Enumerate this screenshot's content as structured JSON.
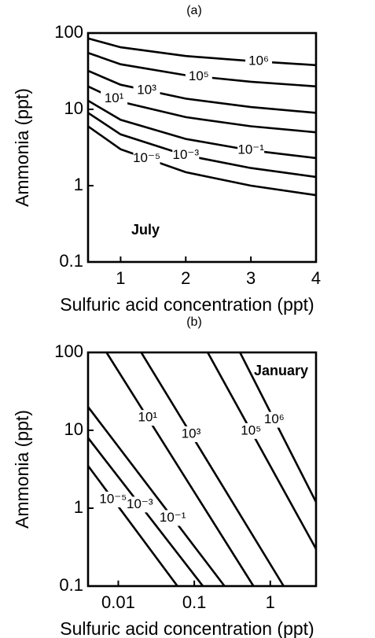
{
  "chart_data": [
    {
      "type": "contour",
      "title": "(a)",
      "annotation": "July",
      "xlabel": "Sulfuric acid concentration (ppt)",
      "ylabel": "Ammonia (ppt)",
      "xscale": "linear",
      "yscale": "log",
      "xlim": [
        0.5,
        4
      ],
      "ylim": [
        0.1,
        100
      ],
      "xticks": [
        1,
        2,
        3,
        4
      ],
      "yticks": [
        0.1,
        1,
        10,
        100
      ],
      "color": "#000000",
      "contours": [
        {
          "label": "10⁻⁵",
          "x": [
            0.5,
            1,
            2,
            3,
            4
          ],
          "y": [
            6,
            3,
            1.5,
            1.0,
            0.75
          ]
        },
        {
          "label": "10⁻³",
          "x": [
            0.5,
            1,
            2,
            3,
            4
          ],
          "y": [
            9,
            4.7,
            2.5,
            1.7,
            1.3
          ]
        },
        {
          "label": "10⁻¹",
          "x": [
            0.5,
            1,
            2,
            3,
            4
          ],
          "y": [
            13,
            7.3,
            4.1,
            2.9,
            2.3
          ]
        },
        {
          "label": "10¹",
          "x": [
            0.5,
            1,
            2,
            3,
            4
          ],
          "y": [
            20,
            12.6,
            7.9,
            6.0,
            5
          ]
        },
        {
          "label": "10³",
          "x": [
            0.5,
            1,
            2,
            3,
            4
          ],
          "y": [
            32,
            21,
            13.8,
            10.7,
            9
          ]
        },
        {
          "label": "10⁵",
          "x": [
            0.5,
            1,
            2,
            3,
            4
          ],
          "y": [
            55,
            39,
            28,
            23,
            20
          ]
        },
        {
          "label": "10⁶",
          "x": [
            0.5,
            1,
            2,
            3,
            4
          ],
          "y": [
            85,
            65,
            50,
            43,
            38
          ]
        }
      ]
    },
    {
      "type": "contour",
      "title": "(b)",
      "annotation": "January",
      "xlabel": "Sulfuric acid concentration (ppt)",
      "ylabel": "Ammonia (ppt)",
      "xscale": "log",
      "yscale": "log",
      "xlim": [
        0.004,
        4
      ],
      "ylim": [
        0.1,
        100
      ],
      "xticks": [
        0.01,
        0.1,
        1
      ],
      "yticks": [
        0.1,
        1,
        10,
        100
      ],
      "color": "#000000",
      "contours": [
        {
          "label": "10⁻⁵",
          "x": [
            0.004,
            0.06
          ],
          "y": [
            3.5,
            0.1
          ]
        },
        {
          "label": "10⁻³",
          "x": [
            0.004,
            0.13
          ],
          "y": [
            8,
            0.1
          ]
        },
        {
          "label": "10⁻¹",
          "x": [
            0.004,
            0.25
          ],
          "y": [
            20,
            0.1
          ]
        },
        {
          "label": "10¹",
          "x": [
            0.007,
            0.6
          ],
          "y": [
            100,
            0.1
          ]
        },
        {
          "label": "10³",
          "x": [
            0.02,
            1.5
          ],
          "y": [
            100,
            0.1
          ]
        },
        {
          "label": "10⁵",
          "x": [
            0.15,
            4
          ],
          "y": [
            100,
            0.3
          ]
        },
        {
          "label": "10⁶",
          "x": [
            0.4,
            4
          ],
          "y": [
            100,
            1.2
          ]
        }
      ]
    }
  ]
}
